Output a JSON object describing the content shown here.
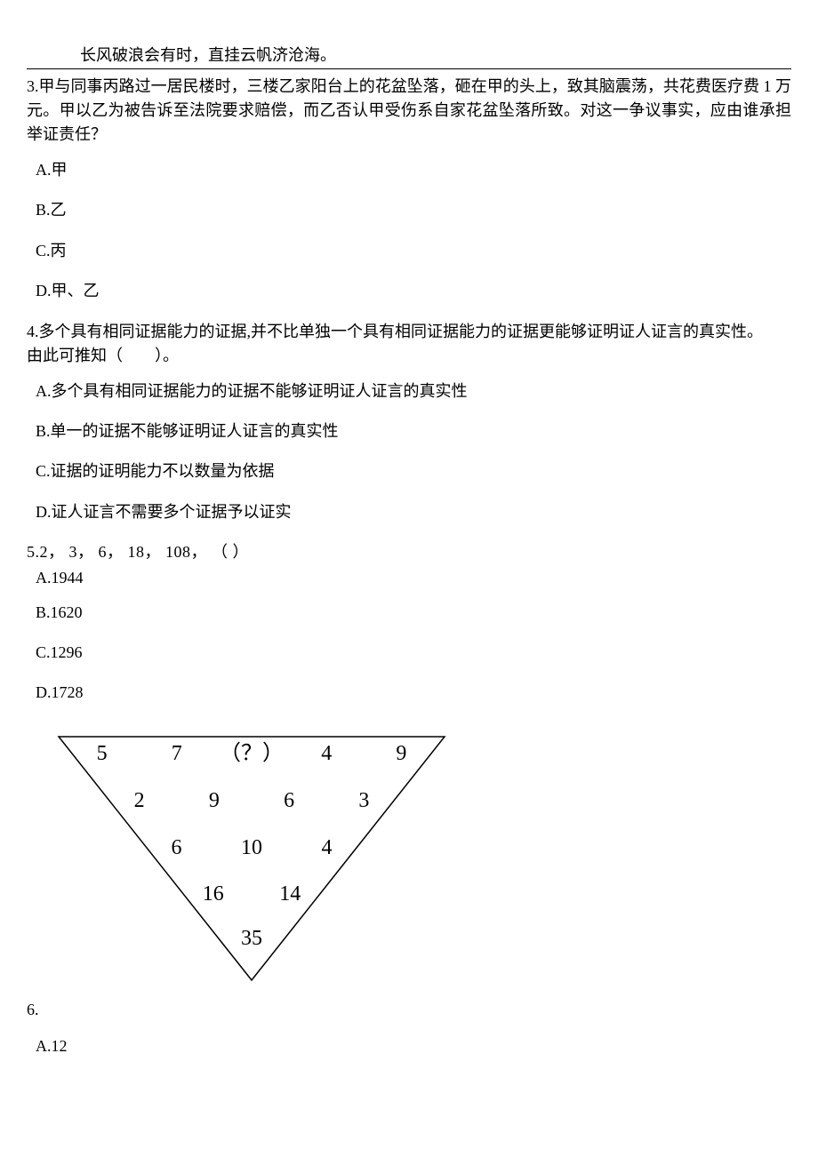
{
  "header_quote": "长风破浪会有时，直挂云帆济沧海。",
  "q3": {
    "text": "3.甲与同事丙路过一居民楼时，三楼乙家阳台上的花盆坠落，砸在甲的头上，致其脑震荡，共花费医疗费 1 万元。甲以乙为被告诉至法院要求赔偿，而乙否认甲受伤系自家花盆坠落所致。对这一争议事实，应由谁承担举证责任？",
    "options": {
      "A": "A.甲",
      "B": "B.乙",
      "C": "C.丙",
      "D": "D.甲、乙"
    }
  },
  "q4": {
    "text1": "4.多个具有相同证据能力的证据,并不比单独一个具有相同证据能力的证据更能够证明证人证言的真实性。",
    "text2": "由此可推知（　　）。",
    "options": {
      "A": "A.多个具有相同证据能力的证据不能够证明证人证言的真实性",
      "B": "B.单一的证据不能够证明证人证言的真实性",
      "C": "C.证据的证明能力不以数量为依据",
      "D": "D.证人证言不需要多个证据予以证实"
    }
  },
  "q5": {
    "text": "5.2，  3，  6，  18，  108，  （                ）",
    "options": {
      "A": "A.1944",
      "B": "B.1620",
      "C": "C.1296",
      "D": "D.1728"
    }
  },
  "q6": {
    "label": "6.",
    "options": {
      "A": "A.12"
    },
    "triangle": {
      "row1": [
        "5",
        "7",
        "（？）",
        "4",
        "9"
      ],
      "row2": [
        "2",
        "9",
        "6",
        "3"
      ],
      "row3": [
        "6",
        "10",
        "4"
      ],
      "row4": [
        "16",
        "14"
      ],
      "row5": [
        "35"
      ],
      "stroke": "#000000",
      "stroke_width": 1.5,
      "font_size": 24,
      "font_family": "serif"
    }
  }
}
